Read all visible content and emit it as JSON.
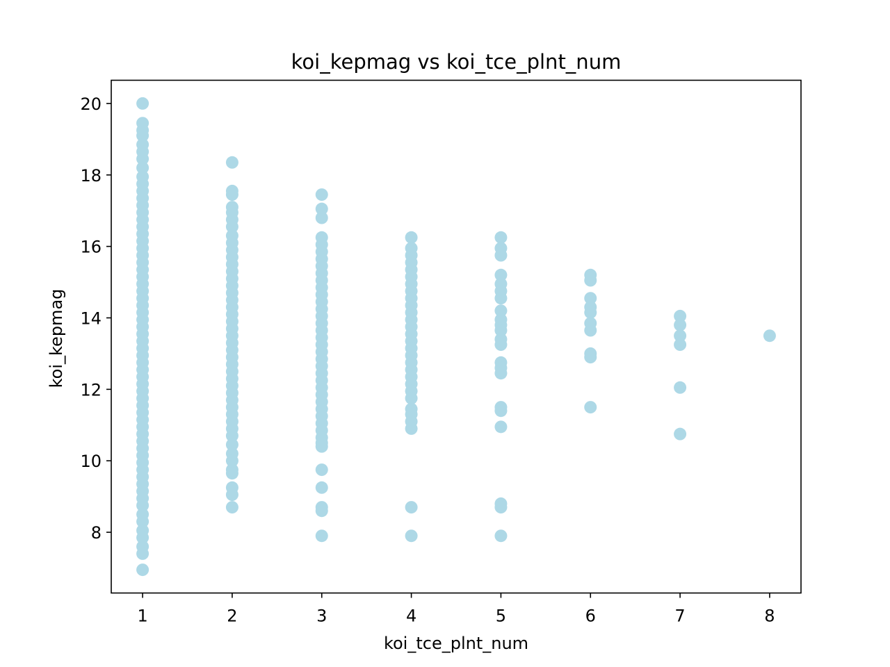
{
  "chart_data": {
    "type": "scatter",
    "title": "koi_kepmag vs koi_tce_plnt_num",
    "xlabel": "koi_tce_plnt_num",
    "ylabel": "koi_kepmag",
    "xlim": [
      0.65,
      8.35
    ],
    "ylim": [
      6.3,
      20.65
    ],
    "xticks": [
      "1",
      "2",
      "3",
      "4",
      "5",
      "6",
      "7",
      "8"
    ],
    "yticks": [
      "8",
      "10",
      "12",
      "14",
      "16",
      "18",
      "20"
    ],
    "grid": false,
    "legend": "none",
    "marker_color": "#add8e6",
    "series": [
      {
        "points": [
          [
            1,
            20.0
          ],
          [
            1,
            19.45
          ],
          [
            1,
            19.25
          ],
          [
            1,
            19.1
          ],
          [
            1,
            18.85
          ],
          [
            1,
            18.65
          ],
          [
            1,
            18.45
          ],
          [
            1,
            18.2
          ],
          [
            1,
            17.95
          ],
          [
            1,
            17.75
          ],
          [
            1,
            17.55
          ],
          [
            1,
            17.35
          ],
          [
            1,
            17.15
          ],
          [
            1,
            16.95
          ],
          [
            1,
            16.75
          ],
          [
            1,
            16.55
          ],
          [
            1,
            16.35
          ],
          [
            1,
            16.15
          ],
          [
            1,
            15.95
          ],
          [
            1,
            15.75
          ],
          [
            1,
            15.55
          ],
          [
            1,
            15.35
          ],
          [
            1,
            15.15
          ],
          [
            1,
            14.95
          ],
          [
            1,
            14.75
          ],
          [
            1,
            14.55
          ],
          [
            1,
            14.35
          ],
          [
            1,
            14.15
          ],
          [
            1,
            13.95
          ],
          [
            1,
            13.75
          ],
          [
            1,
            13.55
          ],
          [
            1,
            13.35
          ],
          [
            1,
            13.15
          ],
          [
            1,
            12.95
          ],
          [
            1,
            12.75
          ],
          [
            1,
            12.55
          ],
          [
            1,
            12.35
          ],
          [
            1,
            12.15
          ],
          [
            1,
            11.95
          ],
          [
            1,
            11.75
          ],
          [
            1,
            11.55
          ],
          [
            1,
            11.35
          ],
          [
            1,
            11.15
          ],
          [
            1,
            10.95
          ],
          [
            1,
            10.75
          ],
          [
            1,
            10.55
          ],
          [
            1,
            10.35
          ],
          [
            1,
            10.15
          ],
          [
            1,
            9.95
          ],
          [
            1,
            9.75
          ],
          [
            1,
            9.55
          ],
          [
            1,
            9.35
          ],
          [
            1,
            9.15
          ],
          [
            1,
            8.95
          ],
          [
            1,
            8.75
          ],
          [
            1,
            8.5
          ],
          [
            1,
            8.3
          ],
          [
            1,
            8.05
          ],
          [
            1,
            7.85
          ],
          [
            1,
            7.6
          ],
          [
            1,
            7.4
          ],
          [
            1,
            6.95
          ],
          [
            2,
            18.35
          ],
          [
            2,
            17.55
          ],
          [
            2,
            17.45
          ],
          [
            2,
            17.1
          ],
          [
            2,
            16.95
          ],
          [
            2,
            16.75
          ],
          [
            2,
            16.55
          ],
          [
            2,
            16.3
          ],
          [
            2,
            16.1
          ],
          [
            2,
            15.9
          ],
          [
            2,
            15.7
          ],
          [
            2,
            15.5
          ],
          [
            2,
            15.3
          ],
          [
            2,
            15.1
          ],
          [
            2,
            14.9
          ],
          [
            2,
            14.7
          ],
          [
            2,
            14.5
          ],
          [
            2,
            14.3
          ],
          [
            2,
            14.1
          ],
          [
            2,
            13.9
          ],
          [
            2,
            13.7
          ],
          [
            2,
            13.5
          ],
          [
            2,
            13.3
          ],
          [
            2,
            13.1
          ],
          [
            2,
            12.9
          ],
          [
            2,
            12.7
          ],
          [
            2,
            12.5
          ],
          [
            2,
            12.3
          ],
          [
            2,
            12.1
          ],
          [
            2,
            11.9
          ],
          [
            2,
            11.7
          ],
          [
            2,
            11.5
          ],
          [
            2,
            11.3
          ],
          [
            2,
            11.1
          ],
          [
            2,
            10.9
          ],
          [
            2,
            10.7
          ],
          [
            2,
            10.45
          ],
          [
            2,
            10.2
          ],
          [
            2,
            10.0
          ],
          [
            2,
            9.75
          ],
          [
            2,
            9.65
          ],
          [
            2,
            9.25
          ],
          [
            2,
            9.05
          ],
          [
            2,
            8.7
          ],
          [
            3,
            17.45
          ],
          [
            3,
            17.05
          ],
          [
            3,
            16.8
          ],
          [
            3,
            16.25
          ],
          [
            3,
            16.05
          ],
          [
            3,
            15.85
          ],
          [
            3,
            15.65
          ],
          [
            3,
            15.45
          ],
          [
            3,
            15.25
          ],
          [
            3,
            15.05
          ],
          [
            3,
            14.85
          ],
          [
            3,
            14.65
          ],
          [
            3,
            14.45
          ],
          [
            3,
            14.25
          ],
          [
            3,
            14.05
          ],
          [
            3,
            13.85
          ],
          [
            3,
            13.65
          ],
          [
            3,
            13.45
          ],
          [
            3,
            13.25
          ],
          [
            3,
            13.05
          ],
          [
            3,
            12.85
          ],
          [
            3,
            12.65
          ],
          [
            3,
            12.45
          ],
          [
            3,
            12.25
          ],
          [
            3,
            12.05
          ],
          [
            3,
            11.85
          ],
          [
            3,
            11.65
          ],
          [
            3,
            11.45
          ],
          [
            3,
            11.25
          ],
          [
            3,
            11.05
          ],
          [
            3,
            10.85
          ],
          [
            3,
            10.65
          ],
          [
            3,
            10.5
          ],
          [
            3,
            10.4
          ],
          [
            3,
            9.75
          ],
          [
            3,
            9.25
          ],
          [
            3,
            8.7
          ],
          [
            3,
            8.6
          ],
          [
            3,
            7.9
          ],
          [
            4,
            16.25
          ],
          [
            4,
            15.95
          ],
          [
            4,
            15.75
          ],
          [
            4,
            15.55
          ],
          [
            4,
            15.35
          ],
          [
            4,
            15.15
          ],
          [
            4,
            14.95
          ],
          [
            4,
            14.75
          ],
          [
            4,
            14.55
          ],
          [
            4,
            14.35
          ],
          [
            4,
            14.15
          ],
          [
            4,
            13.95
          ],
          [
            4,
            13.75
          ],
          [
            4,
            13.55
          ],
          [
            4,
            13.35
          ],
          [
            4,
            13.15
          ],
          [
            4,
            12.95
          ],
          [
            4,
            12.75
          ],
          [
            4,
            12.55
          ],
          [
            4,
            12.35
          ],
          [
            4,
            12.15
          ],
          [
            4,
            11.95
          ],
          [
            4,
            11.75
          ],
          [
            4,
            11.45
          ],
          [
            4,
            11.3
          ],
          [
            4,
            11.1
          ],
          [
            4,
            10.9
          ],
          [
            4,
            8.7
          ],
          [
            4,
            7.9
          ],
          [
            5,
            16.25
          ],
          [
            5,
            15.95
          ],
          [
            5,
            15.75
          ],
          [
            5,
            15.2
          ],
          [
            5,
            14.95
          ],
          [
            5,
            14.75
          ],
          [
            5,
            14.55
          ],
          [
            5,
            14.2
          ],
          [
            5,
            13.95
          ],
          [
            5,
            13.8
          ],
          [
            5,
            13.65
          ],
          [
            5,
            13.4
          ],
          [
            5,
            13.25
          ],
          [
            5,
            12.75
          ],
          [
            5,
            12.6
          ],
          [
            5,
            12.45
          ],
          [
            5,
            11.5
          ],
          [
            5,
            11.4
          ],
          [
            5,
            10.95
          ],
          [
            5,
            8.8
          ],
          [
            5,
            8.7
          ],
          [
            5,
            7.9
          ],
          [
            6,
            15.2
          ],
          [
            6,
            15.05
          ],
          [
            6,
            14.55
          ],
          [
            6,
            14.3
          ],
          [
            6,
            14.15
          ],
          [
            6,
            13.85
          ],
          [
            6,
            13.65
          ],
          [
            6,
            13.0
          ],
          [
            6,
            12.9
          ],
          [
            6,
            11.5
          ],
          [
            7,
            14.05
          ],
          [
            7,
            13.8
          ],
          [
            7,
            13.5
          ],
          [
            7,
            13.25
          ],
          [
            7,
            12.05
          ],
          [
            7,
            10.75
          ],
          [
            8,
            13.5
          ]
        ]
      }
    ]
  }
}
